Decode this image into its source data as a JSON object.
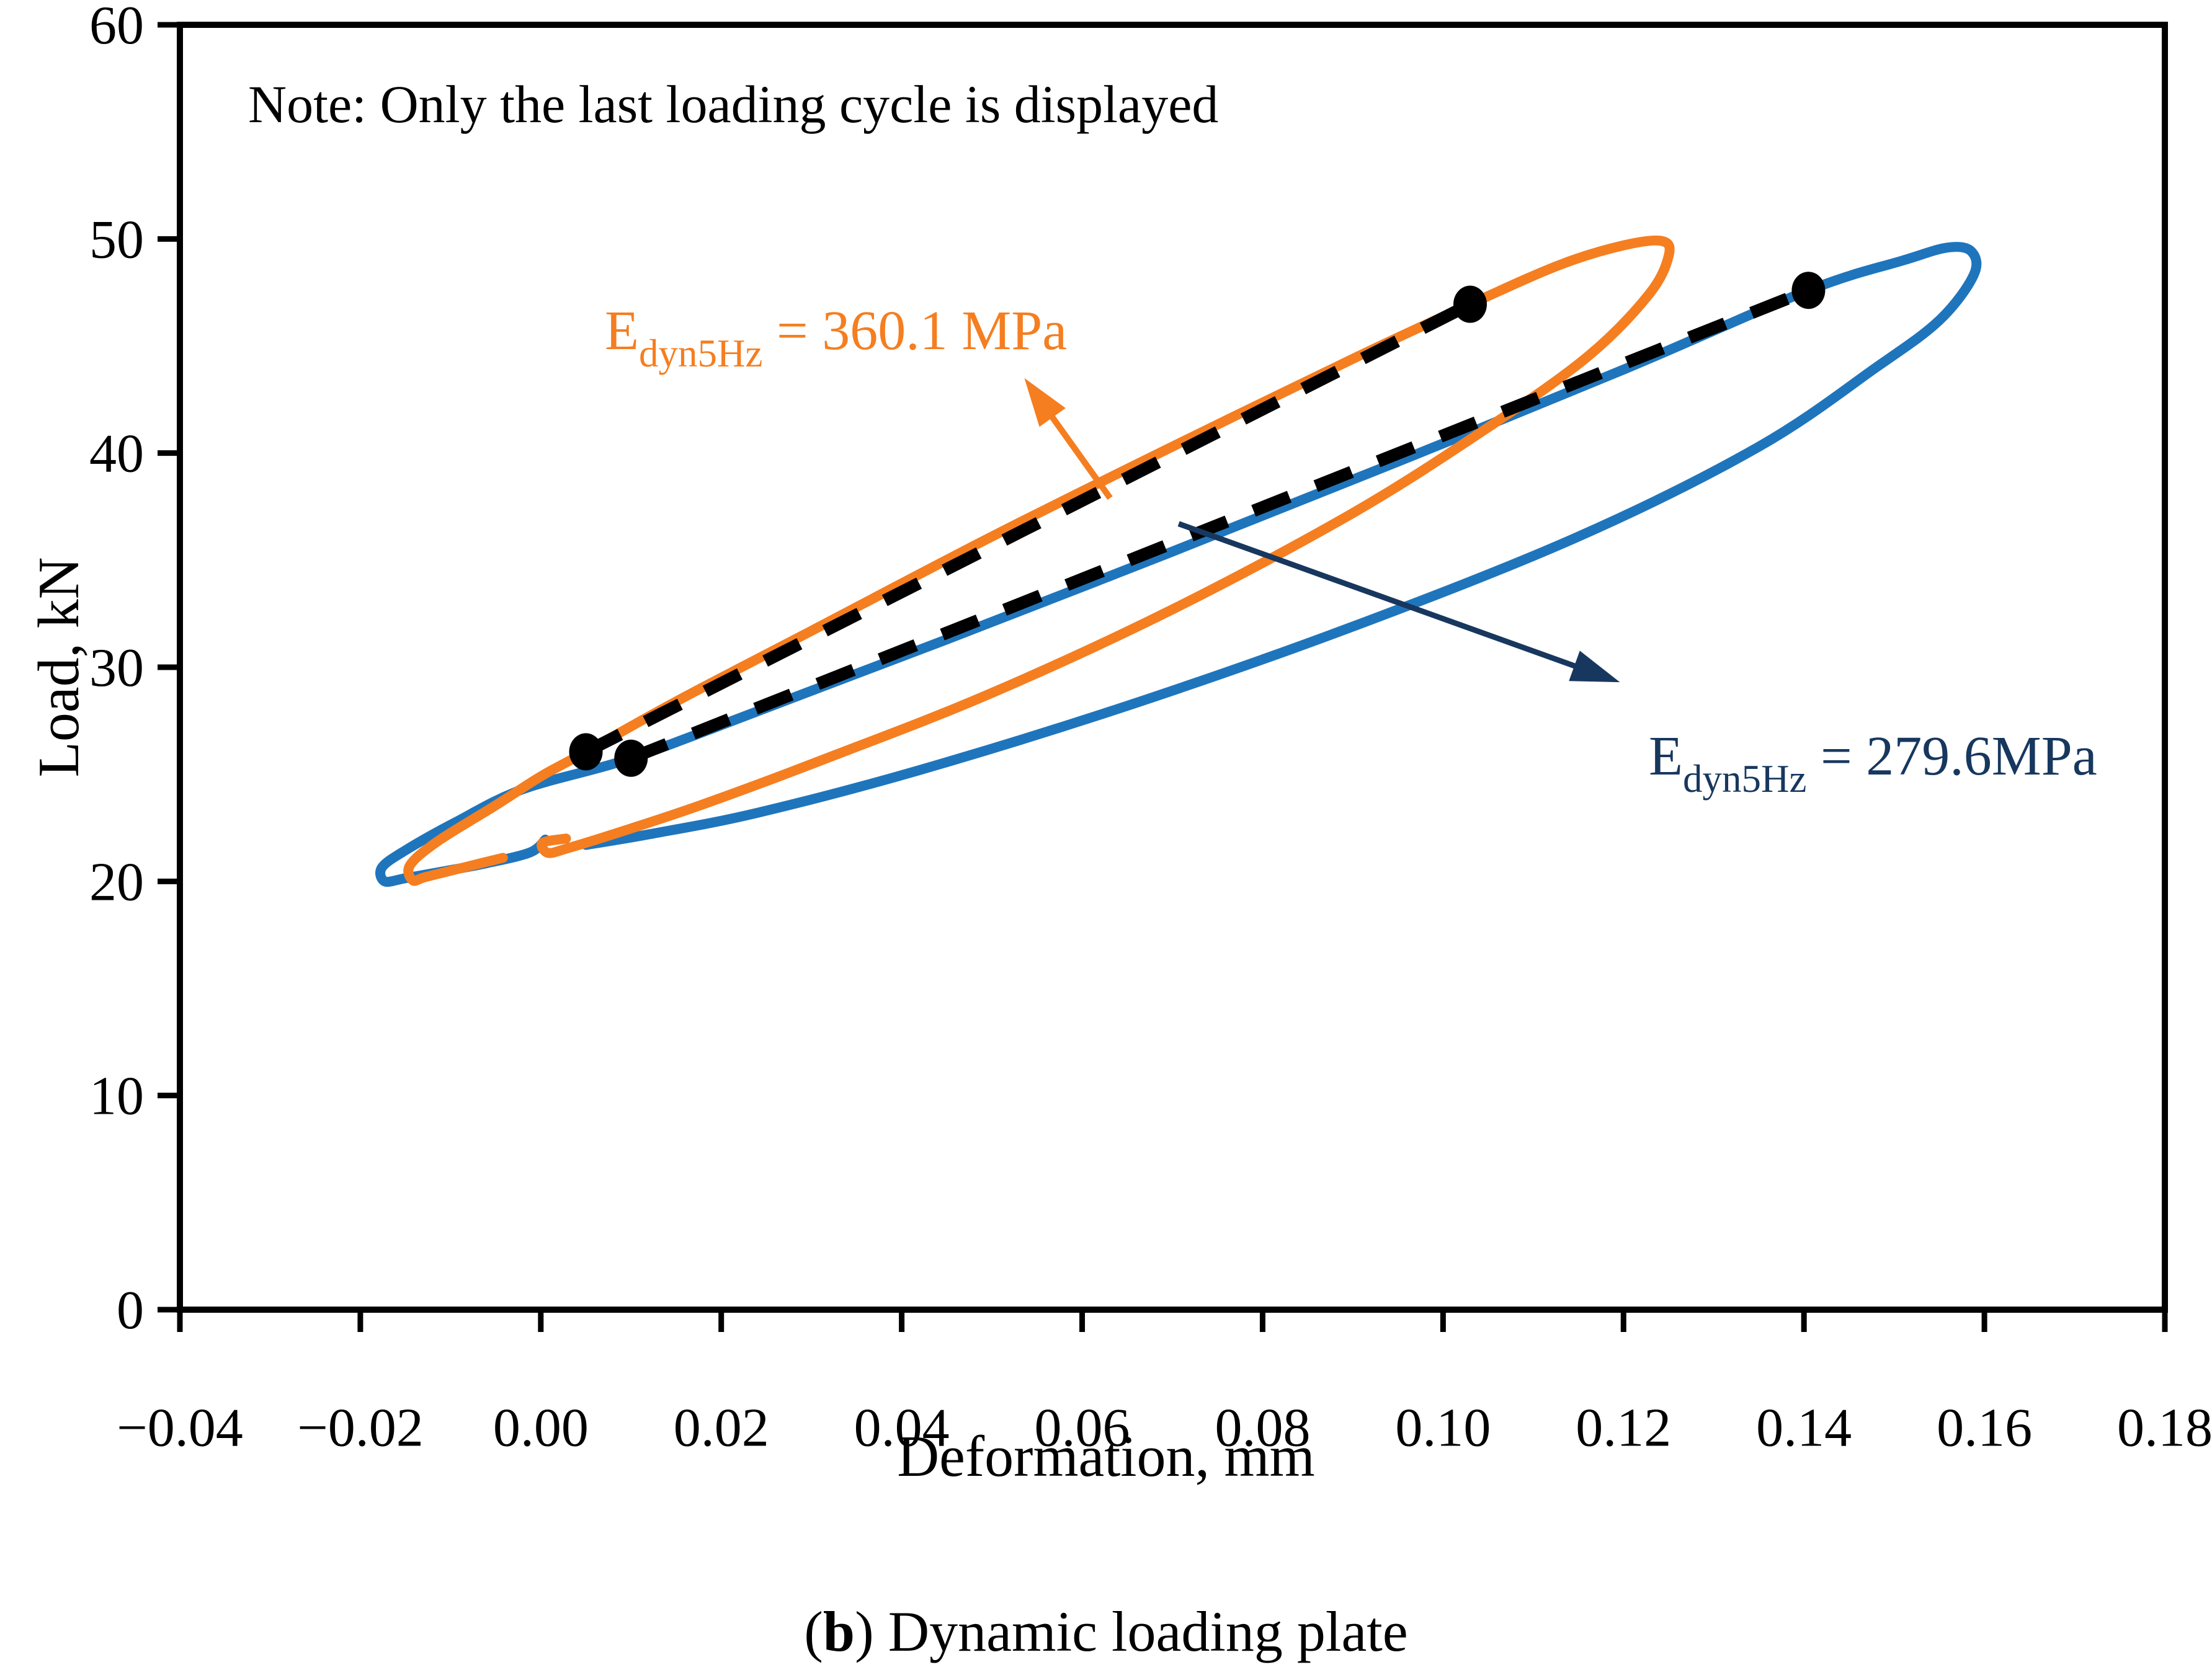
{
  "figure": {
    "note": "Note: Only the last loading cycle is displayed",
    "xlabel": "Deformation, mm",
    "ylabel": "Load, kN",
    "caption": {
      "paren_open": "(",
      "bold": "b",
      "rest": ") Dynamic loading plate"
    }
  },
  "annotations": {
    "orange": {
      "prefix": "E",
      "sub": "dyn5Hz",
      "rest": " = 360.1 MPa",
      "color": "#F57E20"
    },
    "blue": {
      "prefix": "E",
      "sub": "dyn5Hz",
      "rest": " = 279.6MPa",
      "color": "#17375E"
    }
  },
  "chart_data": {
    "type": "line",
    "title": "",
    "xlabel": "Deformation, mm",
    "ylabel": "Load, kN",
    "xlim": [
      -0.04,
      0.18
    ],
    "ylim": [
      0,
      60
    ],
    "grid": false,
    "legend": "none",
    "x_ticks": [
      -0.04,
      -0.02,
      0.0,
      0.02,
      0.04,
      0.06,
      0.08,
      0.1,
      0.12,
      0.14,
      0.16,
      0.18
    ],
    "x_tick_labels": [
      "−0.04",
      "−0.02",
      "0.00",
      "0.02",
      "0.04",
      "0.06",
      "0.08",
      "0.10",
      "0.12",
      "0.14",
      "0.16",
      "0.18"
    ],
    "y_ticks": [
      0,
      10,
      20,
      30,
      40,
      50,
      60
    ],
    "y_tick_labels": [
      "0",
      "10",
      "20",
      "30",
      "40",
      "50",
      "60"
    ],
    "note": "Note: Only the last loading cycle is displayed",
    "series": [
      {
        "name": "blue-hysteresis-loop",
        "color": "#1F75BC",
        "width": 16,
        "modulus_MPa": 279.6,
        "points": [
          [
            0.0005,
            21.95
          ],
          [
            -0.0012,
            21.35
          ],
          [
            -0.006,
            20.85
          ],
          [
            -0.011,
            20.45
          ],
          [
            -0.015,
            20.15
          ],
          [
            -0.0173,
            20.0
          ],
          [
            -0.0176,
            20.65
          ],
          [
            -0.015,
            21.45
          ],
          [
            -0.0095,
            22.75
          ],
          [
            -0.002,
            24.3
          ],
          [
            0.01,
            25.75
          ],
          [
            0.025,
            28.1
          ],
          [
            0.045,
            31.3
          ],
          [
            0.07,
            35.4
          ],
          [
            0.095,
            39.6
          ],
          [
            0.12,
            43.9
          ],
          [
            0.1405,
            47.6
          ],
          [
            0.151,
            49.0
          ],
          [
            0.156,
            49.6
          ],
          [
            0.1586,
            49.4
          ],
          [
            0.1588,
            48.3
          ],
          [
            0.155,
            46.2
          ],
          [
            0.148,
            44.0
          ],
          [
            0.135,
            40.3
          ],
          [
            0.115,
            36.1
          ],
          [
            0.09,
            31.9
          ],
          [
            0.065,
            28.2
          ],
          [
            0.042,
            25.2
          ],
          [
            0.024,
            23.2
          ],
          [
            0.012,
            22.2
          ],
          [
            0.005,
            21.7
          ]
        ]
      },
      {
        "name": "orange-hysteresis-loop",
        "color": "#F57E20",
        "width": 16,
        "modulus_MPa": 360.1,
        "points": [
          [
            -0.0042,
            21.1
          ],
          [
            -0.009,
            20.6
          ],
          [
            -0.0128,
            20.2
          ],
          [
            -0.0142,
            20.05
          ],
          [
            -0.0145,
            20.75
          ],
          [
            -0.0115,
            21.85
          ],
          [
            -0.005,
            23.55
          ],
          [
            0.0,
            24.9
          ],
          [
            0.005,
            26.05
          ],
          [
            0.015,
            28.4
          ],
          [
            0.03,
            31.7
          ],
          [
            0.05,
            36.1
          ],
          [
            0.07,
            40.3
          ],
          [
            0.09,
            44.4
          ],
          [
            0.103,
            46.95
          ],
          [
            0.113,
            48.8
          ],
          [
            0.12,
            49.7
          ],
          [
            0.1243,
            49.9
          ],
          [
            0.125,
            49.2
          ],
          [
            0.1228,
            47.4
          ],
          [
            0.116,
            44.5
          ],
          [
            0.105,
            41.2
          ],
          [
            0.09,
            37.2
          ],
          [
            0.07,
            32.7
          ],
          [
            0.05,
            28.8
          ],
          [
            0.032,
            25.8
          ],
          [
            0.018,
            23.6
          ],
          [
            0.008,
            22.2
          ],
          [
            0.003,
            21.55
          ],
          [
            0.0008,
            21.33
          ],
          [
            0.0002,
            21.8
          ],
          [
            0.0028,
            22.0
          ]
        ]
      }
    ],
    "secant_lines": [
      {
        "name": "orange-secant-dashed",
        "color": "#000000",
        "width": 20,
        "dash": "62 46",
        "from": [
          0.005,
          26.05
        ],
        "to": [
          0.103,
          46.95
        ]
      },
      {
        "name": "blue-secant-dashed",
        "color": "#000000",
        "width": 20,
        "dash": "62 46",
        "from": [
          0.01,
          25.75
        ],
        "to": [
          0.1405,
          47.6
        ]
      }
    ],
    "markers": {
      "color": "#000000",
      "rx": 27,
      "ry": 30,
      "points": [
        [
          0.005,
          26.05
        ],
        [
          0.01,
          25.75
        ],
        [
          0.103,
          46.95
        ],
        [
          0.1405,
          47.6
        ]
      ]
    },
    "arrows": [
      {
        "name": "orange-annotation-arrow",
        "color": "#F57E20",
        "width": 10,
        "tail": [
          0.0631,
          37.9
        ],
        "tip": [
          0.0536,
          43.5
        ]
      },
      {
        "name": "blue-annotation-arrow",
        "color": "#17375E",
        "width": 9,
        "tail": [
          0.0707,
          36.7
        ],
        "tip": [
          0.1196,
          29.3
        ]
      }
    ],
    "annotations": [
      {
        "text": "E_dyn5Hz = 360.1 MPa",
        "color": "#F57E20"
      },
      {
        "text": "E_dyn5Hz = 279.6MPa",
        "color": "#17375E"
      }
    ]
  }
}
